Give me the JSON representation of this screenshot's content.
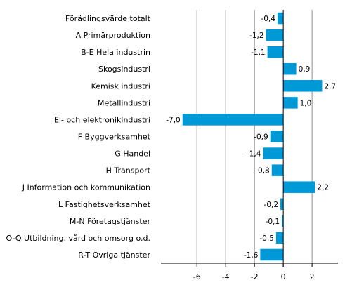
{
  "chart_data": {
    "type": "bar",
    "orientation": "horizontal",
    "title": "",
    "xlabel": "",
    "ylabel": "",
    "xlim": [
      -8.5,
      3.8
    ],
    "xticks": [
      -6,
      -4,
      -2,
      0,
      2
    ],
    "xtick_labels": [
      "-6",
      "-4",
      "-2",
      "0",
      "2"
    ],
    "grid": "vertical",
    "bar_color": "#0099d8",
    "categories": [
      "Förädlingsvärde totalt",
      "A Primärproduktion",
      "B-E Hela industrin",
      "Skogsindustri",
      "Kemisk industri",
      "Metallindustri",
      "El- och elektronikindustri",
      "F Byggverksamhet",
      "G Handel",
      "H Transport",
      "J Information och kommunikation",
      "L Fastighetsverksamhet",
      "M-N Företagstjänster",
      "O-Q Utbildning, vård och omsorg o.d.",
      "R-T Övriga tjänster"
    ],
    "values": [
      -0.4,
      -1.2,
      -1.1,
      0.9,
      2.7,
      1.0,
      -7.0,
      -0.9,
      -1.4,
      -0.8,
      2.2,
      -0.2,
      -0.1,
      -0.5,
      -1.6
    ],
    "value_labels": [
      "-0,4",
      "-1,2",
      "-1,1",
      "0,9",
      "2,7",
      "1,0",
      "-7,0",
      "-0,9",
      "-1,4",
      "-0,8",
      "2,2",
      "-0,2",
      "-0,1",
      "-0,5",
      "-1,6"
    ]
  }
}
